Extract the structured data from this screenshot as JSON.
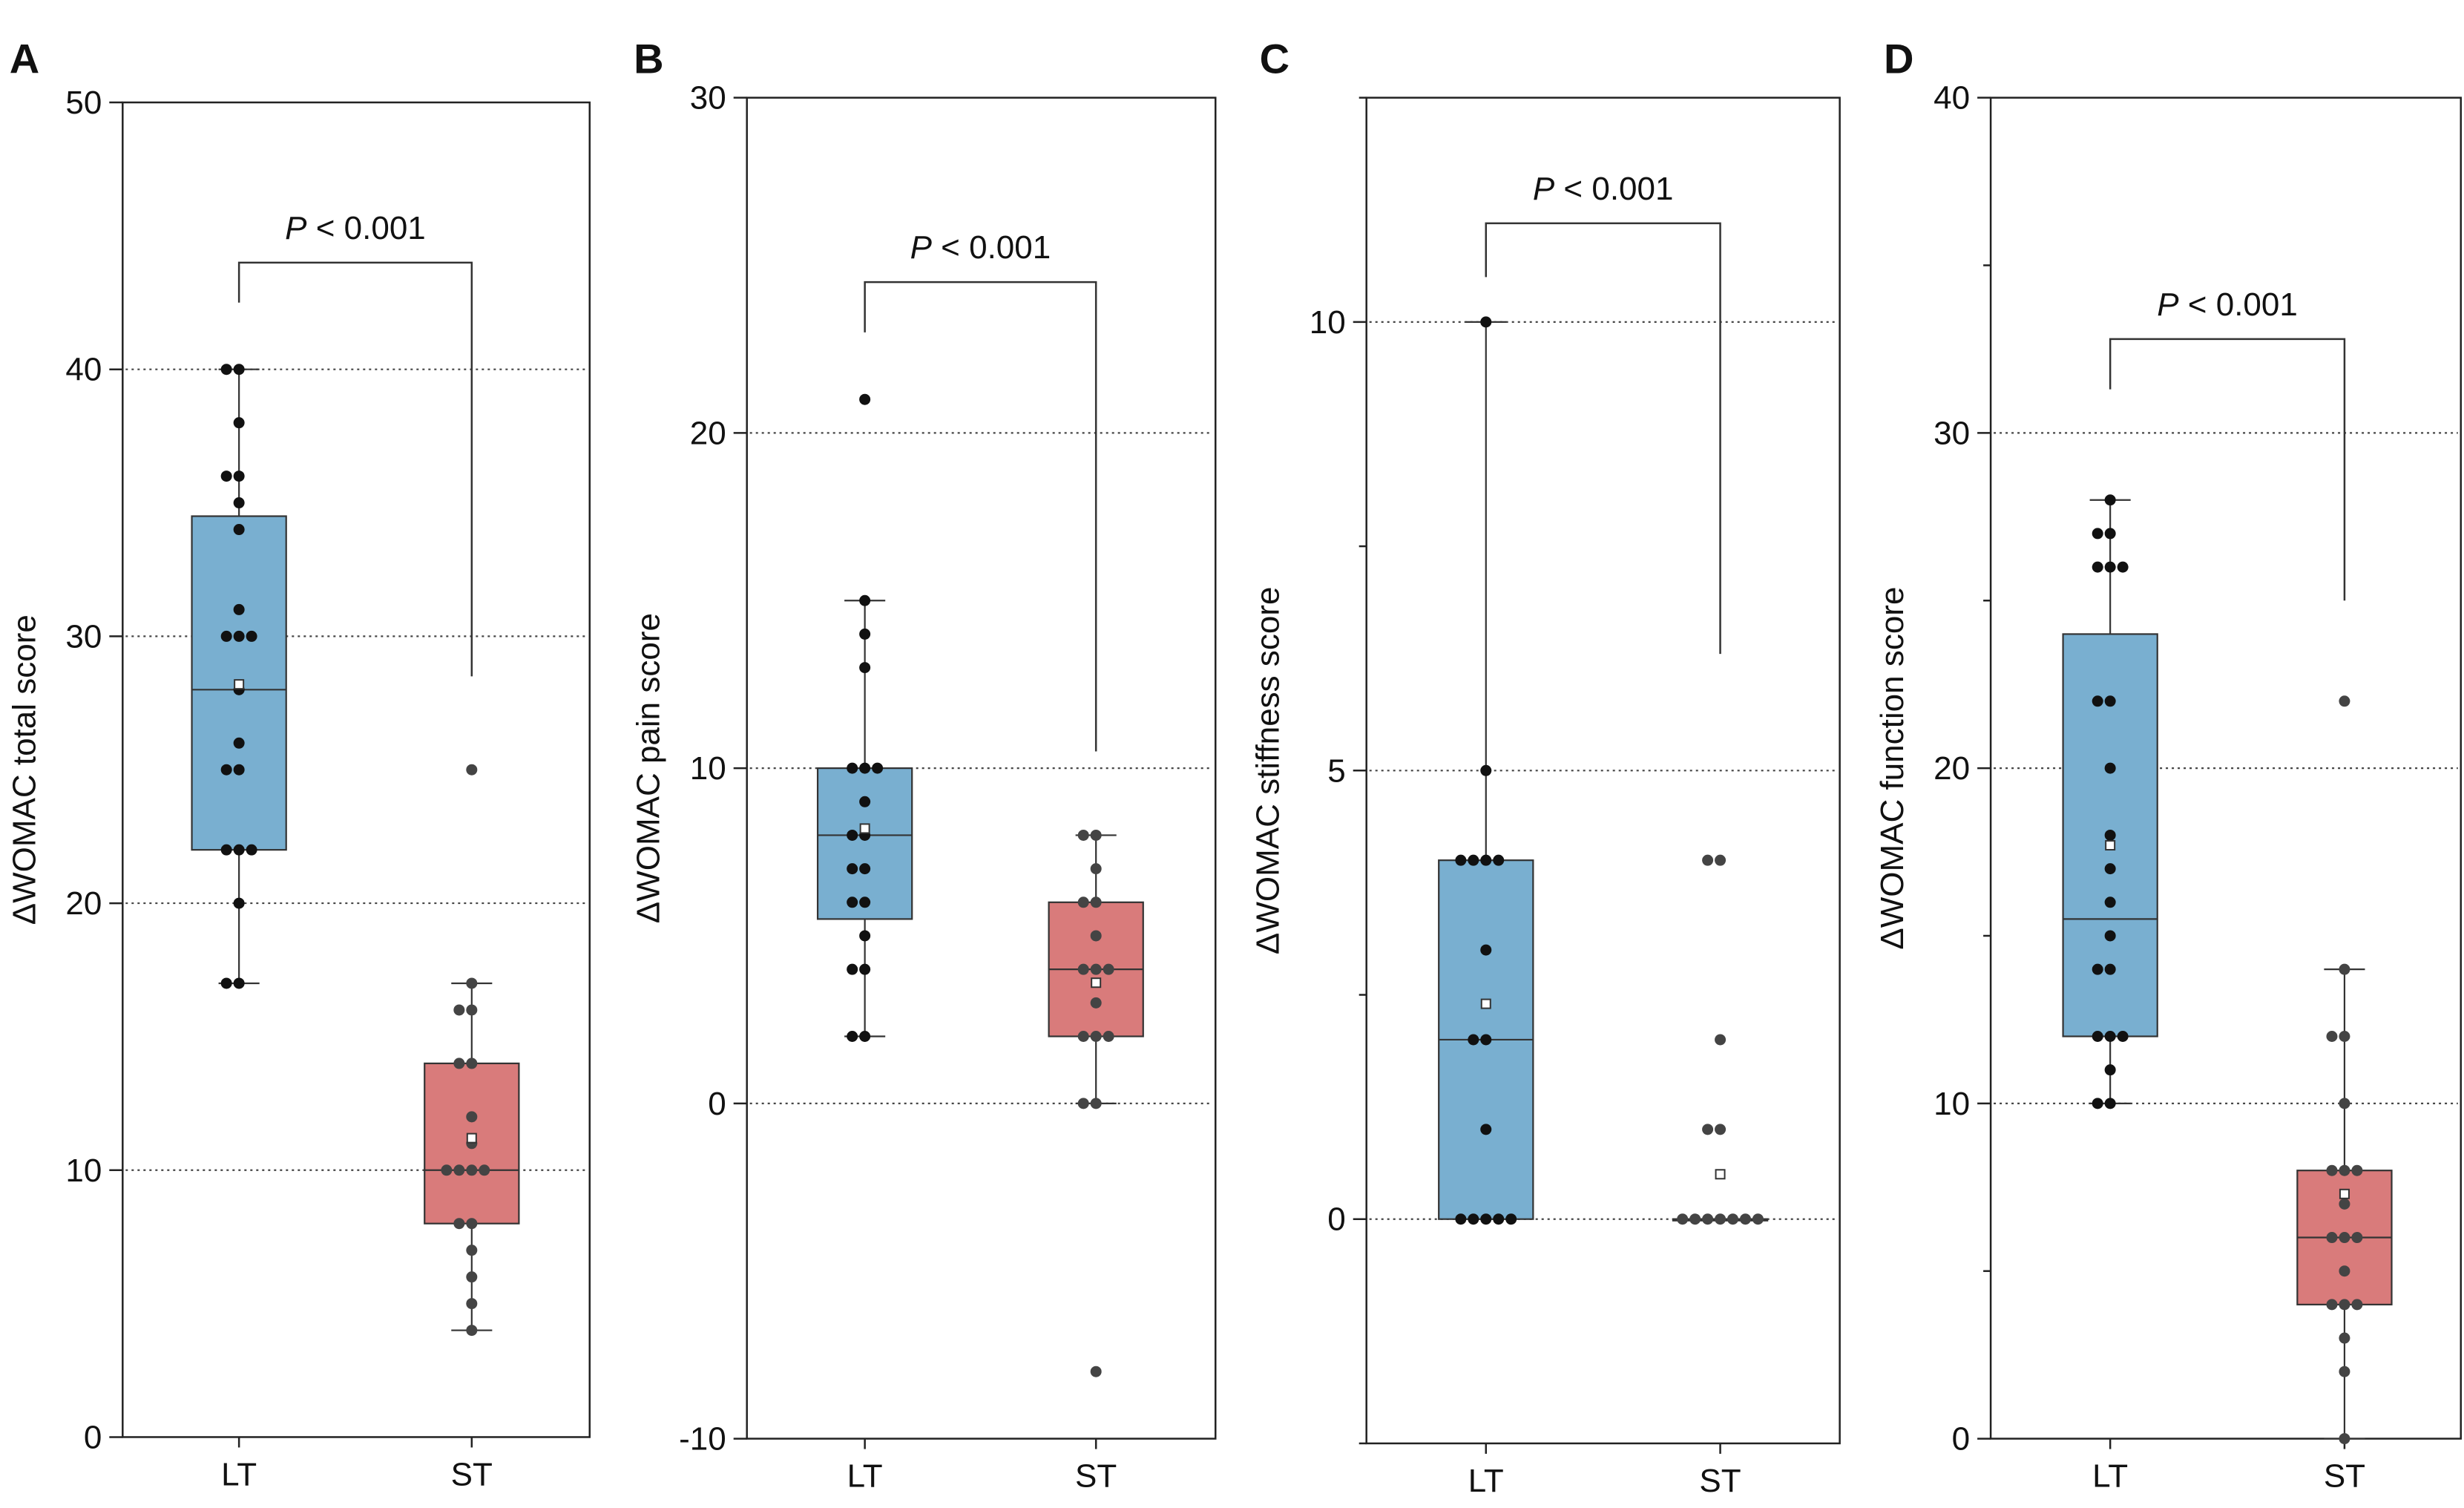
{
  "chart_data": [
    {
      "type": "box",
      "panel": "A",
      "ylabel": "ΔWOMAC total score",
      "ylim": [
        0,
        50
      ],
      "yticks": [
        0,
        10,
        20,
        30,
        40,
        50
      ],
      "grid_lines": [
        10,
        20,
        30,
        40
      ],
      "categories": [
        "LT",
        "ST"
      ],
      "series": [
        {
          "color": "#79afd0",
          "q1": 22,
          "median": 28,
          "q3": 34.5,
          "mean": 28.2,
          "whisker_low": 17,
          "whisker_high": 40,
          "points": [
            40,
            40,
            38,
            36,
            36,
            35,
            34,
            31,
            30,
            30,
            30,
            28,
            26,
            25,
            25,
            22,
            22,
            22,
            20,
            17,
            17
          ]
        },
        {
          "color": "#d97b7b",
          "q1": 8,
          "median": 10,
          "q3": 14,
          "mean": 11.2,
          "whisker_low": 4,
          "whisker_high": 17,
          "points": [
            25,
            17,
            16,
            16,
            14,
            14,
            12,
            11,
            10,
            10,
            10,
            10,
            8,
            8,
            7,
            6,
            5,
            4
          ]
        }
      ],
      "annotation": {
        "italic": "P",
        "text": "< 0.001",
        "bracket_top": 44,
        "left_drop": 42.5,
        "right_drop": 28.5
      }
    },
    {
      "type": "box",
      "panel": "B",
      "ylabel": "ΔWOMAC pain score",
      "ylim": [
        -10,
        30
      ],
      "yticks": [
        -10,
        0,
        10,
        20,
        30
      ],
      "grid_lines": [
        0,
        10,
        20
      ],
      "categories": [
        "LT",
        "ST"
      ],
      "series": [
        {
          "color": "#79afd0",
          "q1": 5.5,
          "median": 8,
          "q3": 10,
          "mean": 8.2,
          "whisker_low": 2,
          "whisker_high": 15,
          "points": [
            21,
            15,
            14,
            13,
            10,
            10,
            10,
            9,
            8,
            8,
            7,
            7,
            6,
            6,
            5,
            4,
            4,
            2,
            2
          ]
        },
        {
          "color": "#d97b7b",
          "q1": 2,
          "median": 4,
          "q3": 6,
          "mean": 3.6,
          "whisker_low": 0,
          "whisker_high": 8,
          "points": [
            8,
            8,
            7,
            6,
            6,
            5,
            4,
            4,
            4,
            3,
            2,
            2,
            2,
            0,
            0,
            -8
          ]
        }
      ],
      "annotation": {
        "italic": "P",
        "text": "< 0.001",
        "bracket_top": 24.5,
        "left_drop": 23,
        "right_drop": 10.5
      }
    },
    {
      "type": "box",
      "panel": "C",
      "ylabel": "ΔWOMAC stiffness score",
      "ylim": [
        -2.5,
        12.5
      ],
      "yticks": [
        0,
        5,
        10
      ],
      "minor_ticks": [
        -2.5,
        2.5,
        7.5,
        12.5
      ],
      "grid_lines": [
        0,
        5,
        10
      ],
      "categories": [
        "LT",
        "ST"
      ],
      "series": [
        {
          "color": "#79afd0",
          "q1": 0,
          "median": 2,
          "q3": 4,
          "mean": 2.4,
          "whisker_low": 0,
          "whisker_high": 10,
          "points": [
            10,
            5,
            4,
            4,
            4,
            4,
            3,
            2,
            2,
            1,
            0,
            0,
            0,
            0,
            0
          ]
        },
        {
          "color": "#d97b7b",
          "q1": 0,
          "median": 0,
          "q3": 0,
          "mean": 0.5,
          "whisker_low": 0,
          "whisker_high": 0,
          "points": [
            4,
            4,
            2,
            1,
            1,
            0,
            0,
            0,
            0,
            0,
            0,
            0
          ]
        }
      ],
      "annotation": {
        "italic": "P",
        "text": "< 0.001",
        "bracket_top": 11.1,
        "left_drop": 10.5,
        "right_drop": 6.3
      }
    },
    {
      "type": "box",
      "panel": "D",
      "ylabel": "ΔWOMAC function score",
      "ylim": [
        0,
        40
      ],
      "yticks": [
        0,
        10,
        20,
        30,
        40
      ],
      "minor_ticks": [
        5,
        15,
        25,
        35
      ],
      "grid_lines": [
        10,
        20,
        30
      ],
      "categories": [
        "LT",
        "ST"
      ],
      "series": [
        {
          "color": "#79afd0",
          "q1": 12,
          "median": 15.5,
          "q3": 24,
          "mean": 17.7,
          "whisker_low": 10,
          "whisker_high": 28,
          "points": [
            28,
            27,
            27,
            26,
            26,
            26,
            22,
            22,
            20,
            18,
            17,
            16,
            15,
            14,
            14,
            12,
            12,
            12,
            11,
            10,
            10
          ]
        },
        {
          "color": "#d97b7b",
          "q1": 4,
          "median": 6,
          "q3": 8,
          "mean": 7.3,
          "whisker_low": 0,
          "whisker_high": 14,
          "points": [
            22,
            14,
            12,
            12,
            10,
            8,
            8,
            8,
            7,
            6,
            6,
            6,
            5,
            4,
            4,
            4,
            3,
            2,
            0
          ]
        }
      ],
      "annotation": {
        "italic": "P",
        "text": "< 0.001",
        "bracket_top": 32.8,
        "left_drop": 31.3,
        "right_drop": 25
      }
    }
  ]
}
